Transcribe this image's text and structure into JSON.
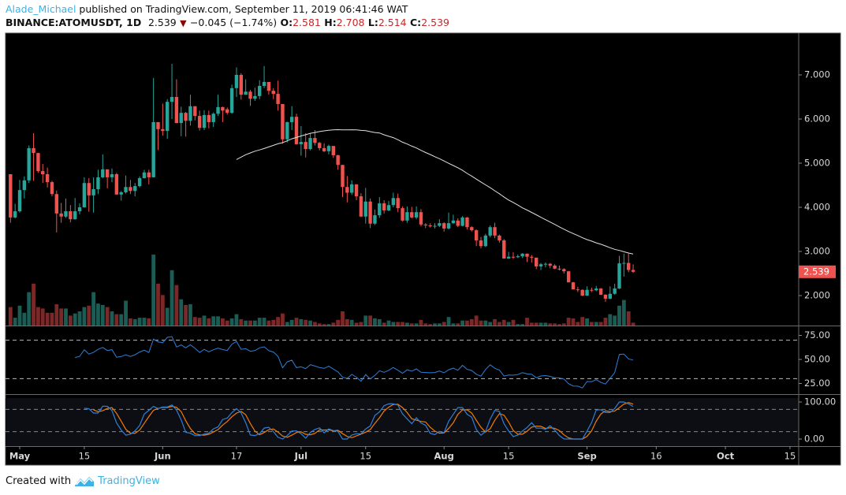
{
  "header": {
    "author": "Alade_Michael",
    "published_text": "published on TradingView.com, September 11, 2019 06:41:46 WAT",
    "symbol": "BINANCE:ATOMUSDT, 1D",
    "last": "2.539",
    "change": "−0.045 (−1.74%)",
    "o_label": "O:",
    "o": "2.581",
    "h_label": "H:",
    "h": "2.708",
    "l_label": "L:",
    "l": "2.514",
    "c_label": "C:",
    "c": "2.539"
  },
  "footer": {
    "created_with": "Created with",
    "brand": "TradingView"
  },
  "colors": {
    "up": "#26a69a",
    "down": "#ef5350",
    "vol_up": "#1b5c55",
    "vol_down": "#7b2828",
    "ma": "#e0e0e0",
    "rsi": "#2f7fd8",
    "stoch_k": "#2f7fd8",
    "stoch_d": "#f57c00",
    "accent": "#3bb3e4"
  },
  "chart_data": {
    "type": "candlestick",
    "symbol": "BINANCE:ATOMUSDT",
    "interval": "1D",
    "first_date": "2019-04-29",
    "last_price_label": "2.539",
    "price_axis": {
      "ticks": [
        "7.000",
        "6.000",
        "5.000",
        "4.000",
        "3.000",
        "2.000"
      ],
      "values": [
        7,
        6,
        5,
        4,
        3,
        2
      ]
    },
    "rsi_axis": {
      "ticks": [
        "75.00",
        "50.00",
        "25.00"
      ],
      "values": [
        75,
        50,
        25
      ],
      "levels": [
        70,
        30
      ]
    },
    "stoch_axis": {
      "ticks": [
        "100.00",
        "0.00"
      ],
      "values": [
        100,
        0
      ],
      "levels": [
        80,
        20
      ]
    },
    "time_axis": [
      {
        "label": "May",
        "day": 2
      },
      {
        "label": "15",
        "day": 16
      },
      {
        "label": "Jun",
        "day": 33
      },
      {
        "label": "17",
        "day": 49
      },
      {
        "label": "Jul",
        "day": 63
      },
      {
        "label": "15",
        "day": 77
      },
      {
        "label": "Aug",
        "day": 94
      },
      {
        "label": "15",
        "day": 108
      },
      {
        "label": "Sep",
        "day": 125
      },
      {
        "label": "16",
        "day": 140
      },
      {
        "label": "Oct",
        "day": 155
      },
      {
        "label": "15",
        "day": 169
      }
    ],
    "ma_period": 50,
    "ohlc": [
      [
        4.75,
        4.75,
        3.65,
        3.77
      ],
      [
        3.77,
        4.08,
        3.75,
        3.91
      ],
      [
        3.91,
        4.62,
        3.88,
        4.39
      ],
      [
        4.39,
        4.7,
        4.2,
        4.61
      ],
      [
        4.61,
        5.4,
        4.55,
        5.34
      ],
      [
        5.34,
        5.68,
        4.6,
        5.23
      ],
      [
        5.23,
        5.23,
        4.78,
        4.82
      ],
      [
        4.82,
        4.98,
        4.55,
        4.75
      ],
      [
        4.75,
        4.9,
        4.45,
        4.57
      ],
      [
        4.57,
        4.6,
        4.25,
        4.3
      ],
      [
        4.3,
        4.38,
        3.43,
        3.86
      ],
      [
        3.86,
        4.1,
        3.65,
        3.79
      ],
      [
        3.79,
        4.2,
        3.76,
        3.91
      ],
      [
        3.91,
        4.05,
        3.66,
        3.73
      ],
      [
        3.73,
        4.21,
        3.72,
        3.91
      ],
      [
        3.91,
        4.09,
        3.84,
        4.0
      ],
      [
        4.0,
        4.68,
        3.99,
        4.55
      ],
      [
        4.55,
        4.66,
        3.9,
        4.27
      ],
      [
        4.27,
        4.68,
        3.88,
        4.41
      ],
      [
        4.41,
        4.85,
        4.3,
        4.68
      ],
      [
        4.68,
        5.2,
        4.66,
        4.86
      ],
      [
        4.86,
        4.86,
        4.43,
        4.68
      ],
      [
        4.68,
        4.88,
        4.57,
        4.75
      ],
      [
        4.75,
        4.78,
        4.29,
        4.29
      ],
      [
        4.29,
        4.37,
        4.15,
        4.34
      ],
      [
        4.34,
        4.72,
        4.31,
        4.46
      ],
      [
        4.46,
        4.62,
        4.3,
        4.37
      ],
      [
        4.37,
        4.55,
        4.25,
        4.48
      ],
      [
        4.48,
        4.7,
        4.45,
        4.66
      ],
      [
        4.66,
        4.85,
        4.65,
        4.79
      ],
      [
        4.79,
        4.85,
        4.52,
        4.68
      ],
      [
        4.68,
        6.93,
        4.68,
        5.93
      ],
      [
        5.93,
        5.93,
        5.3,
        5.77
      ],
      [
        5.77,
        6.35,
        5.62,
        5.73
      ],
      [
        5.73,
        6.45,
        5.55,
        6.39
      ],
      [
        6.39,
        7.25,
        6.0,
        6.5
      ],
      [
        6.5,
        6.9,
        5.9,
        5.91
      ],
      [
        5.91,
        6.28,
        5.61,
        6.14
      ],
      [
        6.14,
        6.16,
        5.6,
        5.96
      ],
      [
        5.96,
        6.55,
        5.85,
        6.29
      ],
      [
        6.29,
        6.29,
        5.97,
        6.07
      ],
      [
        6.07,
        6.19,
        5.74,
        5.8
      ],
      [
        5.8,
        6.2,
        5.75,
        6.09
      ],
      [
        6.09,
        6.19,
        5.79,
        5.93
      ],
      [
        5.93,
        6.15,
        5.82,
        6.12
      ],
      [
        6.12,
        6.55,
        6.07,
        6.27
      ],
      [
        6.27,
        6.28,
        5.93,
        6.19
      ],
      [
        6.22,
        6.26,
        6.1,
        6.14
      ],
      [
        6.14,
        6.78,
        6.12,
        6.7
      ],
      [
        6.7,
        7.17,
        6.5,
        7.0
      ],
      [
        7.0,
        7.04,
        6.44,
        6.55
      ],
      [
        6.55,
        6.9,
        6.55,
        6.62
      ],
      [
        6.62,
        6.66,
        6.3,
        6.46
      ],
      [
        6.46,
        6.71,
        6.41,
        6.52
      ],
      [
        6.52,
        6.88,
        6.45,
        6.75
      ],
      [
        6.75,
        7.2,
        6.7,
        6.84
      ],
      [
        6.84,
        6.84,
        6.55,
        6.64
      ],
      [
        6.64,
        6.7,
        6.45,
        6.57
      ],
      [
        6.57,
        6.87,
        6.19,
        6.34
      ],
      [
        6.34,
        6.34,
        5.44,
        5.54
      ],
      [
        5.54,
        5.94,
        5.47,
        5.93
      ],
      [
        5.93,
        6.29,
        5.75,
        6.05
      ],
      [
        6.05,
        6.12,
        5.42,
        5.43
      ],
      [
        5.43,
        5.84,
        5.17,
        5.48
      ],
      [
        5.48,
        5.68,
        5.13,
        5.32
      ],
      [
        5.32,
        5.68,
        5.29,
        5.57
      ],
      [
        5.57,
        5.75,
        5.4,
        5.46
      ],
      [
        5.46,
        5.48,
        5.29,
        5.34
      ],
      [
        5.34,
        5.45,
        5.25,
        5.27
      ],
      [
        5.27,
        5.42,
        5.2,
        5.39
      ],
      [
        5.39,
        5.39,
        5.12,
        5.18
      ],
      [
        5.18,
        5.19,
        4.85,
        4.96
      ],
      [
        4.96,
        4.96,
        4.23,
        4.46
      ],
      [
        4.46,
        4.71,
        4.11,
        4.33
      ],
      [
        4.33,
        4.61,
        4.28,
        4.52
      ],
      [
        4.52,
        4.52,
        4.16,
        4.25
      ],
      [
        4.25,
        4.32,
        3.78,
        3.79
      ],
      [
        3.79,
        4.44,
        3.63,
        4.13
      ],
      [
        4.13,
        4.2,
        3.53,
        3.63
      ],
      [
        3.63,
        3.95,
        3.6,
        3.82
      ],
      [
        3.82,
        4.23,
        3.76,
        4.09
      ],
      [
        4.09,
        4.16,
        3.86,
        3.93
      ],
      [
        3.93,
        4.14,
        3.91,
        4.05
      ],
      [
        4.05,
        4.33,
        4.0,
        4.21
      ],
      [
        4.21,
        4.31,
        3.89,
        3.98
      ],
      [
        3.98,
        4.02,
        3.68,
        3.7
      ],
      [
        3.7,
        4.02,
        3.65,
        3.89
      ],
      [
        3.89,
        4.01,
        3.75,
        3.77
      ],
      [
        3.77,
        4.02,
        3.73,
        3.89
      ],
      [
        3.89,
        3.96,
        3.57,
        3.61
      ],
      [
        3.61,
        3.64,
        3.53,
        3.59
      ],
      [
        3.59,
        3.64,
        3.54,
        3.57
      ],
      [
        3.57,
        3.64,
        3.52,
        3.58
      ],
      [
        3.58,
        3.73,
        3.55,
        3.64
      ],
      [
        3.64,
        3.66,
        3.45,
        3.52
      ],
      [
        3.52,
        3.88,
        3.5,
        3.64
      ],
      [
        3.64,
        3.83,
        3.62,
        3.7
      ],
      [
        3.7,
        3.75,
        3.55,
        3.58
      ],
      [
        3.58,
        3.8,
        3.57,
        3.77
      ],
      [
        3.77,
        3.78,
        3.5,
        3.55
      ],
      [
        3.55,
        3.57,
        3.45,
        3.48
      ],
      [
        3.48,
        3.5,
        3.12,
        3.25
      ],
      [
        3.25,
        3.33,
        3.07,
        3.12
      ],
      [
        3.12,
        3.4,
        3.1,
        3.36
      ],
      [
        3.36,
        3.59,
        3.32,
        3.55
      ],
      [
        3.55,
        3.65,
        3.3,
        3.36
      ],
      [
        3.36,
        3.38,
        3.2,
        3.25
      ],
      [
        3.25,
        3.28,
        2.84,
        2.84
      ],
      [
        2.84,
        2.99,
        2.83,
        2.88
      ],
      [
        2.88,
        2.98,
        2.83,
        2.87
      ],
      [
        2.87,
        2.93,
        2.85,
        2.89
      ],
      [
        2.89,
        2.96,
        2.85,
        2.95
      ],
      [
        2.95,
        2.95,
        2.76,
        2.88
      ],
      [
        2.88,
        2.92,
        2.75,
        2.86
      ],
      [
        2.86,
        2.86,
        2.6,
        2.66
      ],
      [
        2.66,
        2.74,
        2.58,
        2.71
      ],
      [
        2.71,
        2.75,
        2.64,
        2.72
      ],
      [
        2.72,
        2.74,
        2.62,
        2.68
      ],
      [
        2.68,
        2.71,
        2.6,
        2.61
      ],
      [
        2.61,
        2.68,
        2.57,
        2.6
      ],
      [
        2.6,
        2.62,
        2.5,
        2.55
      ],
      [
        2.55,
        2.56,
        2.3,
        2.3
      ],
      [
        2.3,
        2.31,
        2.14,
        2.14
      ],
      [
        2.14,
        2.2,
        2.08,
        2.13
      ],
      [
        2.13,
        2.14,
        1.99,
        2.0
      ],
      [
        2.0,
        2.21,
        1.99,
        2.13
      ],
      [
        2.13,
        2.18,
        2.08,
        2.12
      ],
      [
        2.12,
        2.22,
        2.1,
        2.16
      ],
      [
        2.16,
        2.17,
        2.01,
        2.02
      ],
      [
        2.02,
        2.03,
        1.86,
        1.93
      ],
      [
        1.93,
        2.21,
        1.92,
        2.04
      ],
      [
        2.04,
        2.27,
        2.02,
        2.16
      ],
      [
        2.16,
        2.9,
        2.15,
        2.73
      ],
      [
        2.73,
        2.95,
        2.43,
        2.74
      ],
      [
        2.74,
        2.95,
        2.53,
        2.58
      ],
      [
        2.581,
        2.708,
        2.514,
        2.539
      ]
    ],
    "volume_relative": [
      26,
      11,
      28,
      18,
      47,
      59,
      26,
      24,
      18,
      18,
      30,
      24,
      24,
      14,
      17,
      20,
      26,
      28,
      47,
      31,
      29,
      26,
      20,
      16,
      16,
      35,
      10,
      9,
      11,
      11,
      10,
      100,
      59,
      43,
      25,
      78,
      57,
      37,
      29,
      30,
      12,
      11,
      14,
      10,
      13,
      13,
      10,
      7,
      10,
      16,
      9,
      7,
      7,
      7,
      11,
      11,
      7,
      8,
      12,
      17,
      5,
      8,
      11,
      9,
      8,
      7,
      5,
      3,
      2,
      2,
      4,
      8,
      20,
      9,
      8,
      4,
      5,
      14,
      14,
      10,
      9,
      4,
      7,
      5,
      5,
      5,
      4,
      3,
      3,
      8,
      3,
      2,
      3,
      3,
      5,
      12,
      3,
      3,
      7,
      7,
      9,
      14,
      7,
      7,
      5,
      9,
      5,
      8,
      5,
      8,
      2,
      2,
      11,
      4,
      4,
      4,
      4,
      3,
      3,
      2,
      3,
      11,
      10,
      5,
      12,
      10,
      5,
      5,
      5,
      11,
      16,
      14,
      28,
      36,
      20,
      4
    ]
  }
}
